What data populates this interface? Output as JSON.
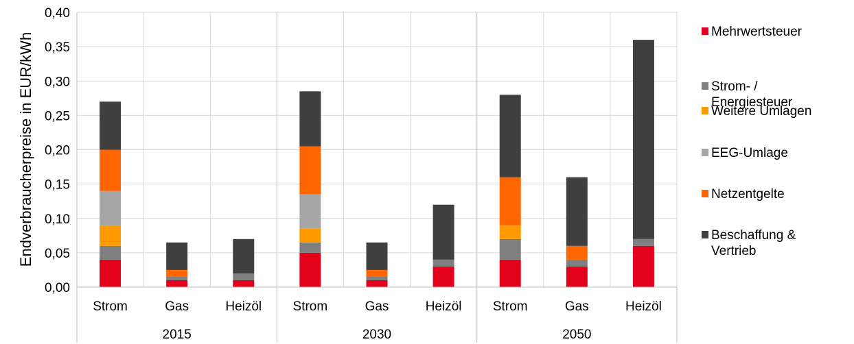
{
  "chart_data": {
    "type": "bar",
    "stacked": true,
    "title": "",
    "xlabel": "",
    "ylabel": "Endverbraucherpreise in EUR/kWh",
    "ylim": [
      0,
      0.4
    ],
    "yticks": [
      "0,00",
      "0,05",
      "0,10",
      "0,15",
      "0,20",
      "0,25",
      "0,30",
      "0,35",
      "0,40"
    ],
    "grid": true,
    "legend_position": "right",
    "groups": [
      {
        "label": "2015",
        "categories": [
          "Strom",
          "Gas",
          "Heizöl"
        ]
      },
      {
        "label": "2030",
        "categories": [
          "Strom",
          "Gas",
          "Heizöl"
        ]
      },
      {
        "label": "2050",
        "categories": [
          "Strom",
          "Gas",
          "Heizöl"
        ]
      }
    ],
    "series": [
      {
        "name": "Mehrwertsteuer",
        "color": "#e2001a",
        "values": [
          0.04,
          0.01,
          0.01,
          0.05,
          0.01,
          0.03,
          0.04,
          0.03,
          0.06
        ]
      },
      {
        "name": "Strom- / Energiesteuer",
        "color": "#7f7f7f",
        "values": [
          0.02,
          0.005,
          0.01,
          0.015,
          0.005,
          0.01,
          0.03,
          0.01,
          0.01
        ]
      },
      {
        "name": "Weitere Umlagen",
        "color": "#ff9900",
        "values": [
          0.03,
          0,
          0,
          0.02,
          0,
          0,
          0.02,
          0,
          0
        ]
      },
      {
        "name": "EEG-Umlage",
        "color": "#a6a6a6",
        "values": [
          0.05,
          0,
          0,
          0.05,
          0,
          0,
          0,
          0,
          0
        ]
      },
      {
        "name": "Netzentgelte",
        "color": "#ff6600",
        "values": [
          0.06,
          0.01,
          0,
          0.07,
          0.01,
          0,
          0.07,
          0.02,
          0
        ]
      },
      {
        "name": "Beschaffung & Vertrieb",
        "color": "#404040",
        "values": [
          0.07,
          0.04,
          0.05,
          0.08,
          0.04,
          0.08,
          0.12,
          0.1,
          0.29
        ]
      }
    ]
  }
}
